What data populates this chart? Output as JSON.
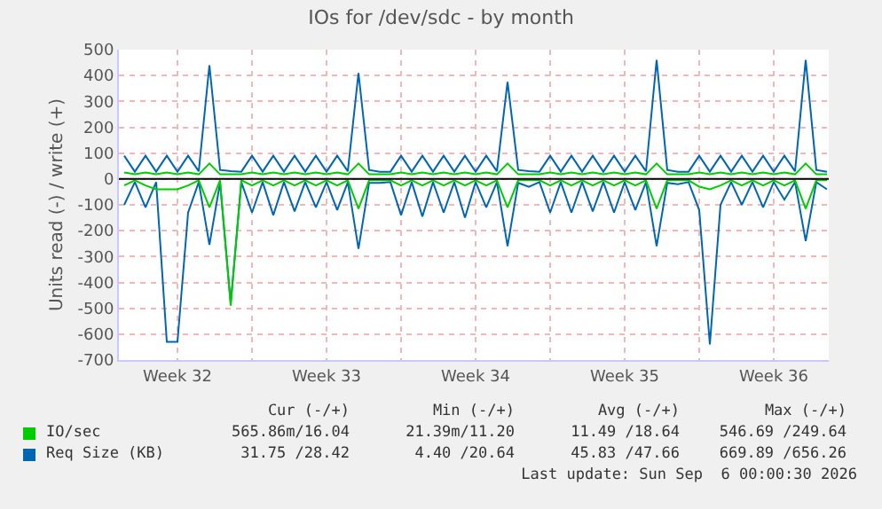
{
  "chart_data": {
    "type": "line",
    "title": "IOs for /dev/sdc - by month",
    "ylabel": "Units read (-) / write (+)",
    "x": [
      "2026-08-04T00:00",
      "2026-08-04T12:00",
      "2026-08-05T00:00",
      "2026-08-05T12:00",
      "2026-08-06T00:00",
      "2026-08-06T12:00",
      "2026-08-07T00:00",
      "2026-08-07T12:00",
      "2026-08-08T00:00",
      "2026-08-08T12:00",
      "2026-08-09T00:00",
      "2026-08-09T12:00",
      "2026-08-10T00:00",
      "2026-08-10T12:00",
      "2026-08-11T00:00",
      "2026-08-11T12:00",
      "2026-08-12T00:00",
      "2026-08-12T12:00",
      "2026-08-13T00:00",
      "2026-08-13T12:00",
      "2026-08-14T00:00",
      "2026-08-14T12:00",
      "2026-08-15T00:00",
      "2026-08-15T12:00",
      "2026-08-16T00:00",
      "2026-08-16T12:00",
      "2026-08-17T00:00",
      "2026-08-17T12:00",
      "2026-08-18T00:00",
      "2026-08-18T12:00",
      "2026-08-19T00:00",
      "2026-08-19T12:00",
      "2026-08-20T00:00",
      "2026-08-20T12:00",
      "2026-08-21T00:00",
      "2026-08-21T12:00",
      "2026-08-22T00:00",
      "2026-08-22T12:00",
      "2026-08-23T00:00",
      "2026-08-23T12:00",
      "2026-08-24T00:00",
      "2026-08-24T12:00",
      "2026-08-25T00:00",
      "2026-08-25T12:00",
      "2026-08-26T00:00",
      "2026-08-26T12:00",
      "2026-08-27T00:00",
      "2026-08-27T12:00",
      "2026-08-28T00:00",
      "2026-08-28T12:00",
      "2026-08-29T00:00",
      "2026-08-29T12:00",
      "2026-08-30T00:00",
      "2026-08-30T12:00",
      "2026-08-31T00:00",
      "2026-08-31T12:00",
      "2026-09-01T00:00",
      "2026-09-01T12:00",
      "2026-09-02T00:00",
      "2026-09-02T12:00",
      "2026-09-03T00:00",
      "2026-09-03T12:00",
      "2026-09-04T00:00",
      "2026-09-04T12:00",
      "2026-09-05T00:00",
      "2026-09-05T12:00",
      "2026-09-06T00:00"
    ],
    "series": [
      {
        "name": "IO/sec",
        "color": "#00cc00",
        "values": [
          25,
          18,
          25,
          18,
          25,
          18,
          25,
          18,
          60,
          18,
          18,
          18,
          25,
          18,
          25,
          18,
          25,
          18,
          25,
          18,
          25,
          18,
          60,
          18,
          18,
          18,
          25,
          18,
          25,
          18,
          25,
          18,
          25,
          18,
          25,
          18,
          60,
          18,
          18,
          18,
          25,
          18,
          25,
          18,
          25,
          18,
          25,
          18,
          25,
          18,
          60,
          18,
          18,
          18,
          25,
          18,
          25,
          18,
          25,
          18,
          25,
          18,
          25,
          18,
          60,
          18,
          18
        ]
      },
      {
        "color": "#00cc00",
        "values": [
          -25,
          -5,
          -25,
          -40,
          -40,
          -40,
          -25,
          -5,
          -110,
          -5,
          -490,
          -5,
          -25,
          -5,
          -25,
          -5,
          -25,
          -5,
          -25,
          -5,
          -25,
          -5,
          -115,
          -5,
          -5,
          -5,
          -25,
          -5,
          -25,
          -5,
          -25,
          -5,
          -25,
          -5,
          -25,
          -5,
          -110,
          -5,
          -5,
          -5,
          -25,
          -5,
          -25,
          -5,
          -25,
          -5,
          -25,
          -5,
          -25,
          -5,
          -115,
          -5,
          -5,
          -5,
          -30,
          -40,
          -25,
          -5,
          -25,
          -5,
          -25,
          -5,
          -25,
          -5,
          -115,
          -5,
          -5
        ]
      },
      {
        "name": "Req Size (KB)",
        "color": "#0066b3",
        "values": [
          90,
          28,
          90,
          28,
          90,
          28,
          90,
          30,
          440,
          35,
          30,
          28,
          90,
          28,
          90,
          28,
          90,
          28,
          90,
          28,
          90,
          30,
          410,
          35,
          28,
          28,
          90,
          28,
          90,
          28,
          90,
          28,
          90,
          28,
          90,
          30,
          375,
          35,
          30,
          28,
          90,
          28,
          90,
          28,
          90,
          28,
          90,
          28,
          90,
          30,
          460,
          35,
          28,
          28,
          90,
          28,
          90,
          28,
          90,
          28,
          90,
          28,
          90,
          30,
          460,
          35,
          28
        ]
      },
      {
        "color": "#0066b3",
        "values": [
          -100,
          -12,
          -110,
          -12,
          -630,
          -630,
          -130,
          -12,
          -255,
          -15,
          -480,
          -12,
          -130,
          -12,
          -140,
          -12,
          -125,
          -12,
          -110,
          -12,
          -120,
          -12,
          -270,
          -15,
          -15,
          -12,
          -140,
          -12,
          -145,
          -12,
          -130,
          -12,
          -150,
          -12,
          -110,
          -12,
          -260,
          -15,
          -30,
          -12,
          -130,
          -12,
          -130,
          -12,
          -125,
          -12,
          -130,
          -12,
          -120,
          -12,
          -260,
          -15,
          -20,
          -12,
          -120,
          -640,
          -100,
          -12,
          -100,
          -12,
          -110,
          -12,
          -80,
          -12,
          -240,
          -12,
          -40
        ]
      }
    ],
    "xlim": [
      "2026-08-03T18:00",
      "2026-09-06T02:00"
    ],
    "xticks": [
      {
        "value": "2026-08-06T12:00",
        "label": "Week 32"
      },
      {
        "value": "2026-08-10T00:00",
        "label": null
      },
      {
        "value": "2026-08-13T12:00",
        "label": "Week 33"
      },
      {
        "value": "2026-08-17T00:00",
        "label": null
      },
      {
        "value": "2026-08-20T12:00",
        "label": "Week 34"
      },
      {
        "value": "2026-08-24T00:00",
        "label": null
      },
      {
        "value": "2026-08-27T12:00",
        "label": "Week 35"
      },
      {
        "value": "2026-08-31T00:00",
        "label": null
      },
      {
        "value": "2026-09-03T12:00",
        "label": "Week 36"
      }
    ],
    "ylim": [
      -700,
      500
    ],
    "yticks": [
      -700,
      -600,
      -500,
      -400,
      -300,
      -200,
      -100,
      0,
      100,
      200,
      300,
      400,
      500
    ],
    "grid": true,
    "legend": "bottom",
    "ref_lines": [
      {
        "axis": "y",
        "value": 0,
        "color": "#000000"
      }
    ],
    "annotations": [
      "Cur (-/+)",
      "Min (-/+)",
      "Avg (-/+)",
      "Max (-/+)",
      "565.86m/16.04",
      "21.39m/11.20",
      "11.49 /18.64",
      "546.69 /249.64",
      "31.75 /28.42",
      "4.40 /20.64",
      "45.83 /47.66",
      "669.89 /656.26",
      "Last update: Sun Sep  6 00:00:30 2026"
    ]
  }
}
